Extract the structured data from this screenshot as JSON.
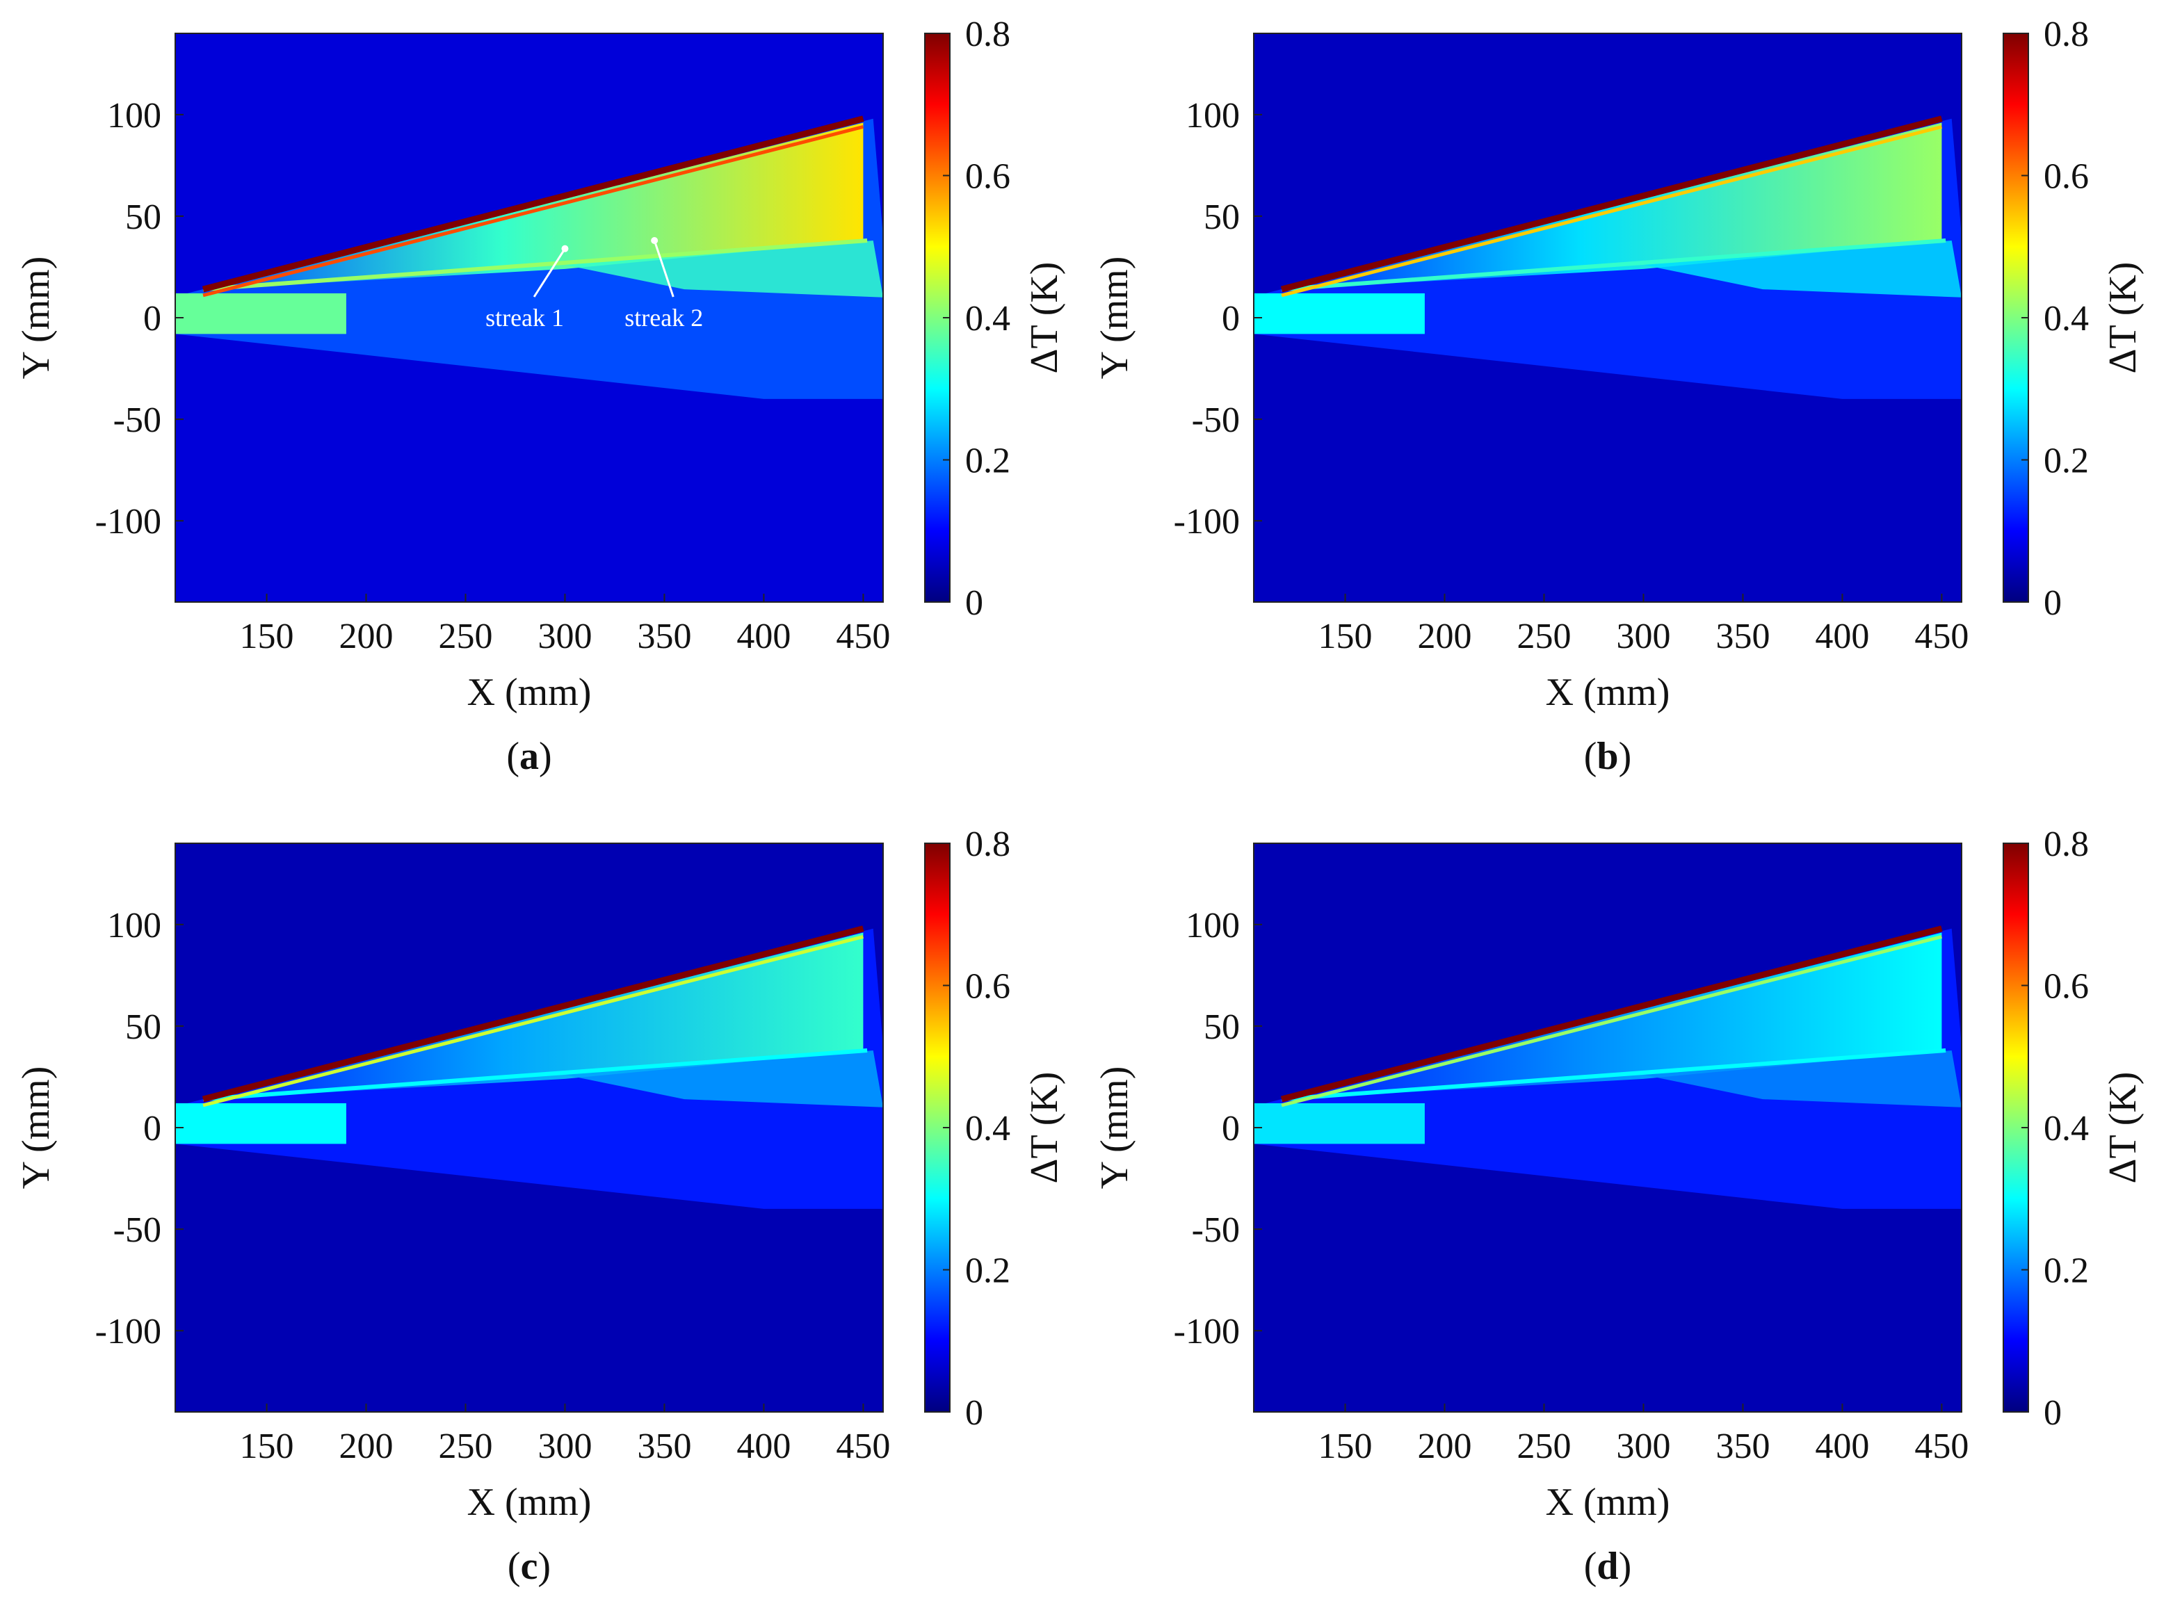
{
  "figure": {
    "background": "#ffffff",
    "colormap": [
      "#00007f",
      "#0000ff",
      "#007fff",
      "#00ffff",
      "#7fff7f",
      "#ffff00",
      "#ff7f00",
      "#ff0000",
      "#7f0000"
    ]
  },
  "chart_data": [
    {
      "id": "a",
      "type": "heatmap",
      "caption_label": "a",
      "xlabel": "X (mm)",
      "ylabel": "Y (mm)",
      "xlim": [
        104,
        460
      ],
      "ylim": [
        -140,
        140
      ],
      "xticks": [
        150,
        200,
        250,
        300,
        350,
        400,
        450
      ],
      "yticks": [
        100,
        50,
        0,
        -50,
        -100
      ],
      "colorbar": {
        "label": "ΔT (K)",
        "range": [
          0,
          0.8
        ],
        "ticks": [
          0,
          0.2,
          0.4,
          0.6,
          0.8
        ]
      },
      "intensity": {
        "leading_edge": 0.8,
        "hot_band": 0.52,
        "streak": 0.42,
        "upstream": 0.38,
        "body": 0.16,
        "background": 0.07
      },
      "annotations": [
        {
          "text": "streak 1",
          "tip": [
            300,
            34
          ],
          "label_at": [
            260,
            0
          ]
        },
        {
          "text": "streak 2",
          "tip": [
            345,
            38
          ],
          "label_at": [
            330,
            0
          ]
        }
      ]
    },
    {
      "id": "b",
      "type": "heatmap",
      "caption_label": "b",
      "xlabel": "X (mm)",
      "ylabel": "Y (mm)",
      "xlim": [
        104,
        460
      ],
      "ylim": [
        -140,
        140
      ],
      "xticks": [
        150,
        200,
        250,
        300,
        350,
        400,
        450
      ],
      "yticks": [
        100,
        50,
        0,
        -50,
        -100
      ],
      "colorbar": {
        "label": "ΔT (K)",
        "range": [
          0,
          0.8
        ],
        "ticks": [
          0,
          0.2,
          0.4,
          0.6,
          0.8
        ]
      },
      "intensity": {
        "leading_edge": 0.8,
        "hot_band": 0.42,
        "streak": 0.34,
        "upstream": 0.3,
        "body": 0.13,
        "background": 0.05
      },
      "annotations": []
    },
    {
      "id": "c",
      "type": "heatmap",
      "caption_label": "c",
      "xlabel": "X (mm)",
      "ylabel": "Y (mm)",
      "xlim": [
        104,
        460
      ],
      "ylim": [
        -140,
        140
      ],
      "xticks": [
        150,
        200,
        250,
        300,
        350,
        400,
        450
      ],
      "yticks": [
        100,
        50,
        0,
        -50,
        -100
      ],
      "colorbar": {
        "label": "ΔT (K)",
        "range": [
          0,
          0.8
        ],
        "ticks": [
          0,
          0.2,
          0.4,
          0.6,
          0.8
        ]
      },
      "intensity": {
        "leading_edge": 0.8,
        "hot_band": 0.34,
        "streak": 0.3,
        "upstream": 0.3,
        "body": 0.12,
        "background": 0.04
      },
      "annotations": []
    },
    {
      "id": "d",
      "type": "heatmap",
      "caption_label": "d",
      "xlabel": "X (mm)",
      "ylabel": "Y (mm)",
      "xlim": [
        104,
        460
      ],
      "ylim": [
        -140,
        140
      ],
      "xticks": [
        150,
        200,
        250,
        300,
        350,
        400,
        450
      ],
      "yticks": [
        100,
        50,
        0,
        -50,
        -100
      ],
      "colorbar": {
        "label": "ΔT (K)",
        "range": [
          0,
          0.8
        ],
        "ticks": [
          0,
          0.2,
          0.4,
          0.6,
          0.8
        ]
      },
      "intensity": {
        "leading_edge": 0.8,
        "hot_band": 0.3,
        "streak": 0.3,
        "upstream": 0.28,
        "body": 0.12,
        "background": 0.04
      },
      "annotations": []
    }
  ]
}
